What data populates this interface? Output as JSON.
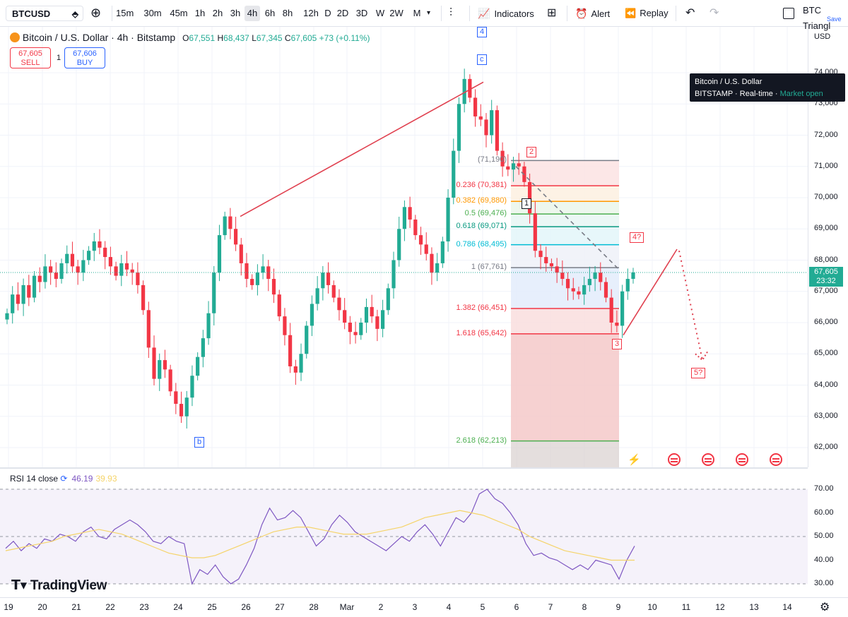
{
  "toolbar": {
    "symbol": "BTCUSD",
    "intervals": [
      "15m",
      "30m",
      "45m",
      "1h",
      "2h",
      "3h",
      "4h",
      "6h",
      "8h",
      "12h",
      "D",
      "2D",
      "3D",
      "W",
      "2W",
      "M"
    ],
    "active_interval": "4h",
    "indicators_label": "Indicators",
    "alert_label": "Alert",
    "replay_label": "Replay",
    "layout_name": "BTC Triangl",
    "save_label": "Save"
  },
  "legend": {
    "title": "Bitcoin / U.S. Dollar · 4h · Bitstamp",
    "open": "67,551",
    "high": "68,437",
    "low": "67,345",
    "close": "67,605",
    "change": "+73 (+0.11%)"
  },
  "trade": {
    "sell_price": "67,605",
    "sell_label": "SELL",
    "qty": "1",
    "buy_price": "67,606",
    "buy_label": "BUY"
  },
  "currency": "USD",
  "tooltip": {
    "title": "Bitcoin / U.S. Dollar",
    "exchange": "BITSTAMP",
    "realtime": "Real-time",
    "status": "Market open"
  },
  "current_price": {
    "price": "67,605",
    "countdown": "23:32"
  },
  "price_axis": [
    "74,000",
    "73,000",
    "72,000",
    "71,000",
    "70,000",
    "69,000",
    "68,000",
    "67,000",
    "66,000",
    "65,000",
    "64,000",
    "63,000",
    "62,000"
  ],
  "time_axis": [
    "19",
    "20",
    "21",
    "22",
    "23",
    "24",
    "25",
    "26",
    "27",
    "28",
    "Mar",
    "2",
    "3",
    "4",
    "5",
    "6",
    "7",
    "8",
    "9",
    "10",
    "11",
    "12",
    "13",
    "14"
  ],
  "waves": {
    "w4": "4",
    "wc": "c",
    "wb": "b",
    "w2": "2",
    "w1": "1",
    "w3": "3",
    "w4q": "4?",
    "w5q": "5?"
  },
  "fib_levels": [
    {
      "label": "(71,190)",
      "color": "#787b86"
    },
    {
      "label": "0.236 (70,381)",
      "color": "#f23645"
    },
    {
      "label": "0.382 (69,880)",
      "color": "#ff9800"
    },
    {
      "label": "0.5 (69,476)",
      "color": "#4caf50"
    },
    {
      "label": "0.618 (69,071)",
      "color": "#089981"
    },
    {
      "label": "0.786 (68,495)",
      "color": "#00bcd4"
    },
    {
      "label": "1 (67,761)",
      "color": "#787b86"
    },
    {
      "label": "1.382 (66,451)",
      "color": "#f23645"
    },
    {
      "label": "1.618 (65,642)",
      "color": "#f23645"
    },
    {
      "label": "2.618 (62,213)",
      "color": "#4caf50"
    }
  ],
  "rsi": {
    "label": "RSI 14 close",
    "value": "46.19",
    "ma": "39.93",
    "axis": [
      "70.00",
      "60.00",
      "50.00",
      "40.00",
      "30.00"
    ]
  },
  "brand": "TradingView",
  "colors": {
    "up": "#22ab94",
    "down": "#f23645",
    "accent": "#2962ff",
    "rsi": "#7e57c2",
    "rsi_ma": "#f5d469"
  },
  "chart_data": {
    "type": "candlestick",
    "title": "Bitcoin / U.S. Dollar · 4h · Bitstamp",
    "ylim": [
      61500,
      74500
    ],
    "candle_closes": [
      66300,
      66900,
      66600,
      67200,
      66800,
      67500,
      67300,
      67800,
      67600,
      67400,
      67900,
      68200,
      67800,
      67600,
      68000,
      68300,
      68600,
      68400,
      68100,
      67800,
      67500,
      67900,
      67700,
      67600,
      67200,
      66400,
      65200,
      64200,
      64800,
      64500,
      63800,
      63400,
      63000,
      63600,
      64300,
      64900,
      65500,
      66300,
      67600,
      68800,
      69400,
      69000,
      68500,
      67900,
      67400,
      67200,
      67600,
      67800,
      67400,
      66900,
      66200,
      65600,
      64600,
      64400,
      65000,
      65900,
      66600,
      67100,
      67600,
      67200,
      66800,
      66400,
      66000,
      65700,
      65600,
      66000,
      66500,
      66200,
      65800,
      66400,
      67100,
      68000,
      69000,
      69700,
      69300,
      68800,
      68500,
      68200,
      67600,
      67900,
      68600,
      70000,
      71500,
      73000,
      73800,
      73200,
      72600,
      72500,
      72000,
      72800,
      71500,
      71000,
      70900,
      71100,
      71000,
      70500,
      69500,
      68300,
      68100,
      67900,
      67800,
      67600,
      67400,
      67100,
      67000,
      66900,
      67200,
      67400,
      67600,
      67300,
      66800,
      66000,
      65900,
      67000,
      67400,
      67605
    ],
    "rsi_values": [
      45,
      48,
      44,
      47,
      45,
      49,
      48,
      51,
      50,
      48,
      52,
      54,
      50,
      49,
      53,
      55,
      57,
      55,
      52,
      48,
      47,
      50,
      48,
      47,
      30,
      36,
      34,
      38,
      33,
      30,
      32,
      38,
      45,
      55,
      62,
      57,
      58,
      61,
      58,
      52,
      46,
      49,
      55,
      59,
      56,
      52,
      50,
      48,
      46,
      44,
      47,
      50,
      48,
      52,
      55,
      51,
      46,
      52,
      58,
      56,
      60,
      68,
      70,
      66,
      64,
      60,
      55,
      47,
      42,
      43,
      41,
      40,
      38,
      36,
      38,
      36,
      40,
      39,
      38,
      32,
      40,
      46
    ],
    "rsi_ma_values": [
      44,
      45,
      46,
      47,
      48,
      50,
      51,
      52,
      53,
      52,
      51,
      49,
      47,
      45,
      43,
      42,
      41,
      41,
      42,
      44,
      46,
      48,
      50,
      52,
      53,
      54,
      54,
      53,
      52,
      51,
      51,
      51,
      52,
      53,
      54,
      56,
      58,
      59,
      60,
      61,
      60,
      59,
      57,
      55,
      53,
      50,
      48,
      46,
      44,
      43,
      42,
      41,
      40,
      40,
      40
    ],
    "rsi_ylim": [
      25,
      75
    ]
  }
}
